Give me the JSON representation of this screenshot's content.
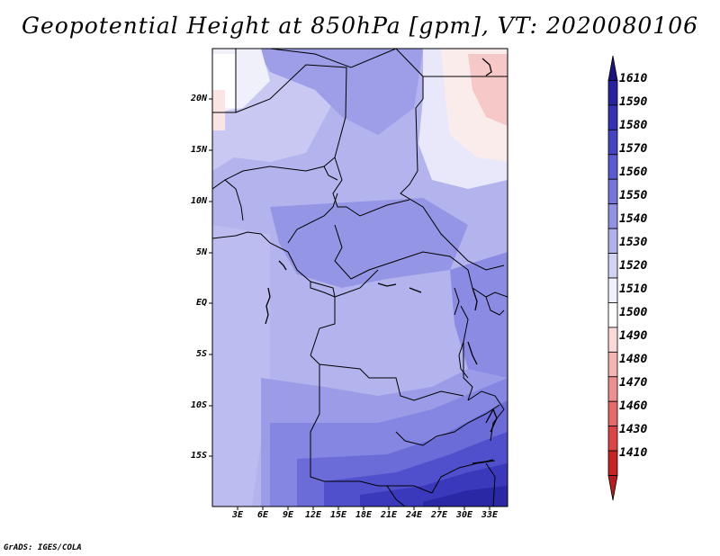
{
  "title": "Geopotential Height at 850hPa [gpm], VT: 2020080106",
  "credit": "GrADS: IGES/COLA",
  "map": {
    "lat_labels": [
      "20N",
      "15N",
      "10N",
      "5N",
      "EQ",
      "5S",
      "10S",
      "15S"
    ],
    "lon_labels": [
      "3E",
      "6E",
      "9E",
      "12E",
      "15E",
      "18E",
      "21E",
      "24E",
      "27E",
      "30E",
      "33E"
    ]
  },
  "colorbar": {
    "levels": [
      "1610",
      "1590",
      "1580",
      "1570",
      "1560",
      "1550",
      "1540",
      "1530",
      "1520",
      "1510",
      "1500",
      "1490",
      "1480",
      "1470",
      "1460",
      "1430",
      "1410"
    ],
    "colors": [
      "#1b1480",
      "#2822a0",
      "#3532b5",
      "#4443c6",
      "#5a5ad2",
      "#7474dd",
      "#9191e5",
      "#b1b1ec",
      "#d2d2f4",
      "#f1f1fb",
      "#ffffff",
      "#fbd9d9",
      "#f4b4b4",
      "#ee8f8f",
      "#e66a6a",
      "#dd4444",
      "#c82222",
      "#b81b1b"
    ]
  }
}
